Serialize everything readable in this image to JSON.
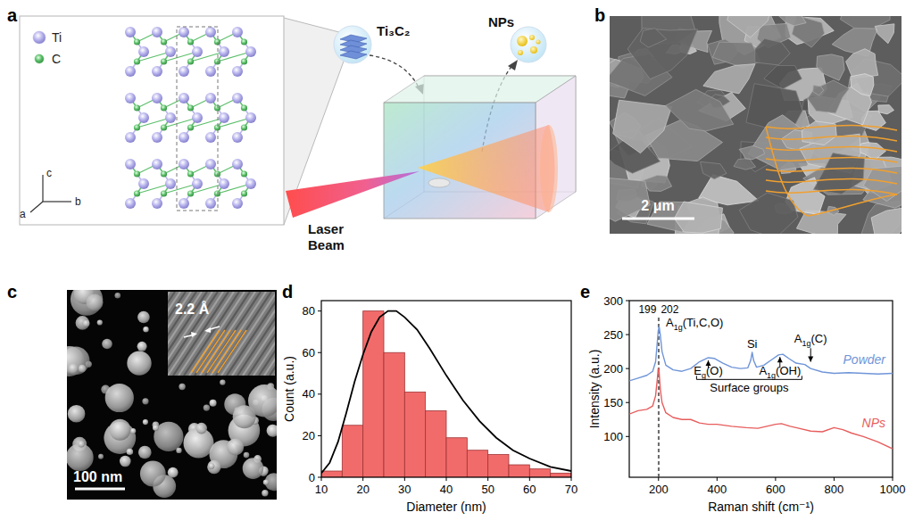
{
  "panel_labels": [
    "a",
    "b",
    "c",
    "d",
    "e"
  ],
  "diagram_a": {
    "atoms": [
      {
        "label": "Ti",
        "color": "#b7b3ec"
      },
      {
        "label": "C",
        "color": "#5cbf6a"
      }
    ],
    "axes": [
      "c",
      "b",
      "a"
    ],
    "material": "Ti₃C₂",
    "product": "NPs",
    "laser": "Laser Beam"
  },
  "image_b": {
    "scale_bar": "2 μm"
  },
  "image_c": {
    "scale_bar": "100 nm",
    "lattice_spacing": "2.2 Å"
  },
  "chart_data": [
    {
      "type": "histogram",
      "xlabel": "Diameter (nm)",
      "ylabel": "Count (a.u.)",
      "bins": [
        10,
        15,
        20,
        25,
        30,
        35,
        40,
        45,
        50,
        55,
        60,
        65,
        70
      ],
      "values": [
        3,
        25,
        80,
        60,
        41,
        32,
        19,
        13,
        11,
        6,
        4,
        2
      ],
      "color": "#f26b6b",
      "xlim": [
        10,
        70
      ],
      "ylim": [
        0,
        85
      ],
      "xticks": [
        10,
        20,
        30,
        40,
        50,
        60,
        70
      ],
      "yticks": [
        0,
        20,
        40,
        60,
        80
      ],
      "series": [
        {
          "type": "line",
          "color": "#000000",
          "x": [
            10,
            12,
            14,
            16,
            18,
            20,
            22,
            24,
            26,
            27,
            28,
            30,
            33,
            36,
            40,
            44,
            48,
            52,
            56,
            60,
            65,
            70
          ],
          "values": [
            2,
            7,
            17,
            31,
            46,
            59,
            70,
            77,
            80,
            80,
            80,
            77,
            71,
            62,
            49,
            37,
            27,
            19,
            13,
            9,
            5,
            3
          ]
        }
      ]
    },
    {
      "type": "line",
      "xlabel": "Raman shift (cm⁻¹)",
      "ylabel": "Intensity (a.u.)",
      "xlim": [
        100,
        1000
      ],
      "ylim": [
        40,
        300
      ],
      "xticks": [
        200,
        400,
        600,
        800,
        1000
      ],
      "yticks": [
        100,
        150,
        200,
        250,
        300
      ],
      "reference_lines": [
        {
          "value": 199,
          "label": "199"
        },
        {
          "value": 202,
          "label": "202"
        }
      ],
      "annotations": [
        "A1g(Ti,C,O)",
        "Eg(O)",
        "Si",
        "A1g(OH)",
        "A1g(C)",
        "Surface groups"
      ],
      "series": [
        {
          "name": "Powder",
          "color": "#6f95d8",
          "x": [
            100,
            130,
            160,
            180,
            190,
            196,
            199,
            202,
            206,
            212,
            225,
            250,
            280,
            310,
            340,
            370,
            390,
            420,
            450,
            480,
            505,
            515,
            520,
            525,
            535,
            560,
            590,
            610,
            625,
            645,
            670,
            700,
            720,
            760,
            800,
            850,
            900,
            950,
            1000
          ],
          "values": [
            182,
            186,
            190,
            196,
            210,
            240,
            255,
            262,
            250,
            225,
            205,
            198,
            196,
            200,
            210,
            216,
            215,
            208,
            202,
            200,
            201,
            212,
            224,
            212,
            202,
            205,
            214,
            220,
            221,
            215,
            208,
            206,
            200,
            195,
            193,
            194,
            193,
            192,
            193
          ]
        },
        {
          "name": "NPs",
          "color": "#e85d5d",
          "x": [
            100,
            130,
            160,
            180,
            190,
            196,
            199,
            202,
            206,
            212,
            225,
            250,
            280,
            310,
            340,
            370,
            400,
            450,
            500,
            540,
            570,
            600,
            620,
            650,
            680,
            720,
            760,
            800,
            830,
            860,
            900,
            950,
            1000
          ],
          "values": [
            133,
            138,
            140,
            145,
            160,
            185,
            200,
            195,
            170,
            150,
            135,
            128,
            125,
            125,
            120,
            118,
            118,
            115,
            113,
            112,
            115,
            118,
            119,
            115,
            112,
            108,
            107,
            113,
            110,
            105,
            100,
            92,
            82
          ]
        }
      ]
    }
  ]
}
